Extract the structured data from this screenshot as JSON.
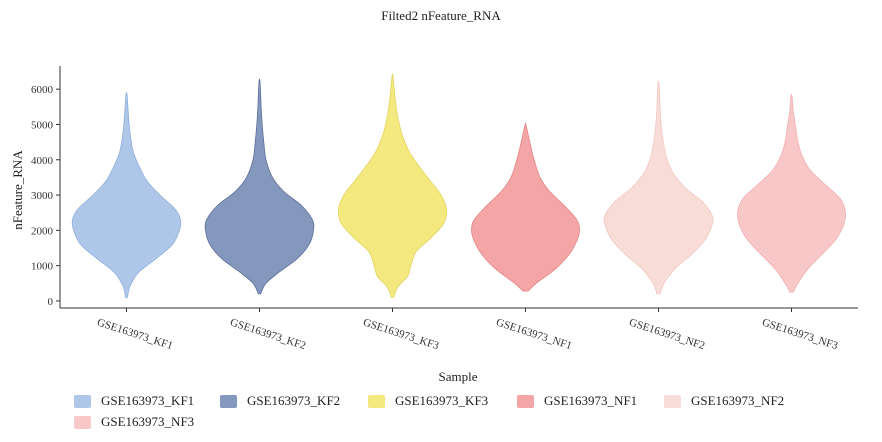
{
  "chart_data": {
    "type": "violin",
    "title": "Filted2 nFeature_RNA",
    "xlabel": "Sample",
    "ylabel": "nFeature_RNA",
    "ylim": [
      -200,
      6600
    ],
    "yticks": [
      0,
      1000,
      2000,
      3000,
      4000,
      5000,
      6000
    ],
    "legend_position": "bottom",
    "categories": [
      "GSE163973_KF1",
      "GSE163973_KF2",
      "GSE163973_KF3",
      "GSE163973_NF1",
      "GSE163973_NF2",
      "GSE163973_NF3"
    ],
    "series": [
      {
        "name": "GSE163973_KF1",
        "color": "#aec7e8",
        "edge": "#8fb0dc",
        "min": 100,
        "max": 5850,
        "profile": [
          [
            100,
            0.02
          ],
          [
            400,
            0.06
          ],
          [
            800,
            0.22
          ],
          [
            1200,
            0.55
          ],
          [
            1600,
            0.85
          ],
          [
            2000,
            0.98
          ],
          [
            2300,
            1.0
          ],
          [
            2600,
            0.9
          ],
          [
            3000,
            0.62
          ],
          [
            3400,
            0.38
          ],
          [
            3800,
            0.24
          ],
          [
            4200,
            0.13
          ],
          [
            4600,
            0.08
          ],
          [
            5000,
            0.05
          ],
          [
            5400,
            0.03
          ],
          [
            5850,
            0.01
          ]
        ]
      },
      {
        "name": "GSE163973_KF2",
        "color": "#8497bd",
        "edge": "#5e6f99",
        "min": 200,
        "max": 6200,
        "profile": [
          [
            200,
            0.02
          ],
          [
            500,
            0.12
          ],
          [
            800,
            0.35
          ],
          [
            1200,
            0.7
          ],
          [
            1600,
            0.92
          ],
          [
            2000,
            1.0
          ],
          [
            2300,
            0.98
          ],
          [
            2700,
            0.78
          ],
          [
            3100,
            0.45
          ],
          [
            3500,
            0.24
          ],
          [
            4000,
            0.12
          ],
          [
            4500,
            0.08
          ],
          [
            5000,
            0.05
          ],
          [
            5500,
            0.03
          ],
          [
            6200,
            0.01
          ]
        ]
      },
      {
        "name": "GSE163973_KF3",
        "color": "#f4e97e",
        "edge": "#e2d35a",
        "min": 100,
        "max": 6350,
        "profile": [
          [
            100,
            0.02
          ],
          [
            400,
            0.1
          ],
          [
            700,
            0.28
          ],
          [
            1000,
            0.34
          ],
          [
            1400,
            0.44
          ],
          [
            1800,
            0.72
          ],
          [
            2200,
            0.95
          ],
          [
            2600,
            1.0
          ],
          [
            3000,
            0.9
          ],
          [
            3400,
            0.7
          ],
          [
            3800,
            0.5
          ],
          [
            4200,
            0.32
          ],
          [
            4700,
            0.18
          ],
          [
            5200,
            0.1
          ],
          [
            5700,
            0.05
          ],
          [
            6350,
            0.01
          ]
        ]
      },
      {
        "name": "GSE163973_NF1",
        "color": "#f4a5a6",
        "edge": "#e58586",
        "min": 280,
        "max": 4980,
        "profile": [
          [
            280,
            0.05
          ],
          [
            500,
            0.2
          ],
          [
            900,
            0.55
          ],
          [
            1300,
            0.8
          ],
          [
            1700,
            0.95
          ],
          [
            2000,
            1.0
          ],
          [
            2300,
            0.95
          ],
          [
            2700,
            0.72
          ],
          [
            3100,
            0.45
          ],
          [
            3500,
            0.27
          ],
          [
            4000,
            0.16
          ],
          [
            4500,
            0.08
          ],
          [
            4980,
            0.01
          ]
        ]
      },
      {
        "name": "GSE163973_NF2",
        "color": "#f8dcd7",
        "edge": "#f2c9c2",
        "min": 200,
        "max": 6150,
        "profile": [
          [
            200,
            0.03
          ],
          [
            500,
            0.1
          ],
          [
            900,
            0.3
          ],
          [
            1300,
            0.6
          ],
          [
            1700,
            0.85
          ],
          [
            2100,
            0.98
          ],
          [
            2400,
            1.0
          ],
          [
            2800,
            0.82
          ],
          [
            3200,
            0.5
          ],
          [
            3600,
            0.28
          ],
          [
            4000,
            0.16
          ],
          [
            4500,
            0.09
          ],
          [
            5000,
            0.05
          ],
          [
            5500,
            0.03
          ],
          [
            6150,
            0.01
          ]
        ]
      },
      {
        "name": "GSE163973_NF3",
        "color": "#f8c8c8",
        "edge": "#f0aeb0",
        "min": 250,
        "max": 5800,
        "profile": [
          [
            250,
            0.03
          ],
          [
            500,
            0.12
          ],
          [
            900,
            0.3
          ],
          [
            1300,
            0.55
          ],
          [
            1700,
            0.8
          ],
          [
            2100,
            0.95
          ],
          [
            2500,
            1.0
          ],
          [
            2900,
            0.9
          ],
          [
            3300,
            0.62
          ],
          [
            3700,
            0.35
          ],
          [
            4100,
            0.2
          ],
          [
            4500,
            0.12
          ],
          [
            5000,
            0.07
          ],
          [
            5400,
            0.03
          ],
          [
            5800,
            0.01
          ]
        ]
      }
    ]
  }
}
